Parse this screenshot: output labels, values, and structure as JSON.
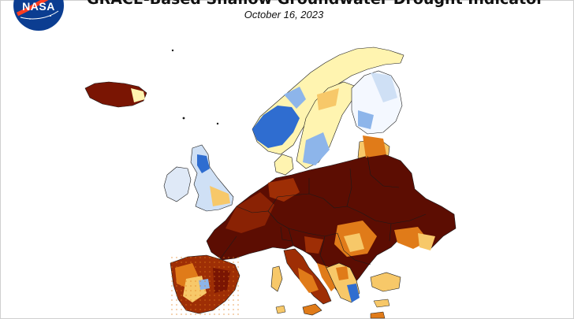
{
  "header": {
    "title": "GRACE-Based Shallow Groundwater Drought Indicator",
    "date": "October 16, 2023"
  },
  "logo": {
    "text": "NASA",
    "icon": "nasa-meatball-icon"
  },
  "colors": {
    "extreme_drought": "#5c0d02",
    "severe_drought": "#9e2e05",
    "moderate_drought": "#e07b19",
    "abnormally_dry": "#f7c869",
    "near_normal": "#fff4b0",
    "wet": "#ffffff",
    "very_wet": "#b8d4f2",
    "exceptionally_wet": "#1e5ec7",
    "borders": "#1a1a1a"
  }
}
